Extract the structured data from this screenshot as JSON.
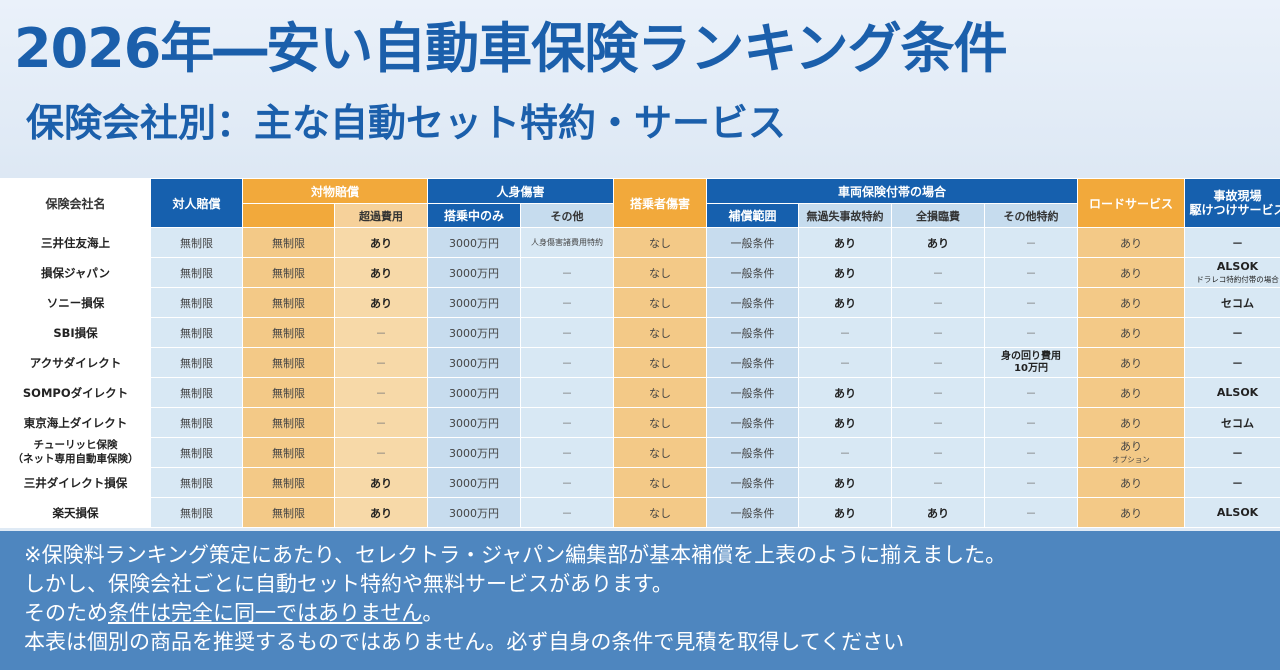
{
  "title": "2026年―安い自動車保険ランキング条件",
  "subtitle": "保険会社別：主な自動セット特約・サービス",
  "table": {
    "col_company": "保険会社名",
    "col_taijin": "対人賠償",
    "col_taibutsu": "対物賠償",
    "col_taibutsu_sub": "超過費用",
    "col_jinshin": "人身傷害",
    "col_jinshin_sub1": "搭乗中のみ",
    "col_jinshin_sub2": "その他",
    "col_tojosha": "搭乗者傷害",
    "col_sharyo": "車両保険付帯の場合",
    "col_sharyo_sub1": "補償範囲",
    "col_sharyo_sub2": "無過失事故特約",
    "col_sharyo_sub3": "全損臨費",
    "col_sharyo_sub4": "その他特約",
    "col_road": "ロードサービス",
    "col_jiko_line1": "事故現場",
    "col_jiko_line2": "駆けつけサービス",
    "rows": [
      {
        "name": "三井住友海上",
        "taijin": "無制限",
        "taibutsu": "無制限",
        "chouka": "あり",
        "tojochu": "3000万円",
        "sonota": "人身傷害諸費用特約",
        "tojosha": "なし",
        "hani": "一般条件",
        "mukashitsu": "あり",
        "zenson": "あり",
        "tokuyaku": "－",
        "road": "あり",
        "jiko": "－"
      },
      {
        "name": "損保ジャパン",
        "taijin": "無制限",
        "taibutsu": "無制限",
        "chouka": "あり",
        "tojochu": "3000万円",
        "sonota": "－",
        "tojosha": "なし",
        "hani": "一般条件",
        "mukashitsu": "あり",
        "zenson": "－",
        "tokuyaku": "－",
        "road": "あり",
        "jiko": "ALSOK",
        "jiko_sub": "ドラレコ特約付帯の場合"
      },
      {
        "name": "ソニー損保",
        "taijin": "無制限",
        "taibutsu": "無制限",
        "chouka": "あり",
        "tojochu": "3000万円",
        "sonota": "－",
        "tojosha": "なし",
        "hani": "一般条件",
        "mukashitsu": "あり",
        "zenson": "－",
        "tokuyaku": "－",
        "road": "あり",
        "jiko": "セコム"
      },
      {
        "name": "SBI損保",
        "taijin": "無制限",
        "taibutsu": "無制限",
        "chouka": "－",
        "tojochu": "3000万円",
        "sonota": "－",
        "tojosha": "なし",
        "hani": "一般条件",
        "mukashitsu": "－",
        "zenson": "－",
        "tokuyaku": "－",
        "road": "あり",
        "jiko": "－"
      },
      {
        "name": "アクサダイレクト",
        "taijin": "無制限",
        "taibutsu": "無制限",
        "chouka": "－",
        "tojochu": "3000万円",
        "sonota": "－",
        "tojosha": "なし",
        "hani": "一般条件",
        "mukashitsu": "－",
        "zenson": "－",
        "tokuyaku": "身の回り費用",
        "tokuyaku_sub": "10万円",
        "road": "あり",
        "jiko": "－"
      },
      {
        "name": "SOMPOダイレクト",
        "taijin": "無制限",
        "taibutsu": "無制限",
        "chouka": "－",
        "tojochu": "3000万円",
        "sonota": "－",
        "tojosha": "なし",
        "hani": "一般条件",
        "mukashitsu": "あり",
        "zenson": "－",
        "tokuyaku": "－",
        "road": "あり",
        "jiko": "ALSOK"
      },
      {
        "name": "東京海上ダイレクト",
        "taijin": "無制限",
        "taibutsu": "無制限",
        "chouka": "－",
        "tojochu": "3000万円",
        "sonota": "－",
        "tojosha": "なし",
        "hani": "一般条件",
        "mukashitsu": "あり",
        "zenson": "－",
        "tokuyaku": "－",
        "road": "あり",
        "jiko": "セコム"
      },
      {
        "name": "チューリッヒ保険",
        "name2": "（ネット専用自動車保険）",
        "taijin": "無制限",
        "taibutsu": "無制限",
        "chouka": "－",
        "tojochu": "3000万円",
        "sonota": "－",
        "tojosha": "なし",
        "hani": "一般条件",
        "mukashitsu": "－",
        "zenson": "－",
        "tokuyaku": "－",
        "road": "あり",
        "road_sub": "オプション",
        "jiko": "－"
      },
      {
        "name": "三井ダイレクト損保",
        "taijin": "無制限",
        "taibutsu": "無制限",
        "chouka": "あり",
        "tojochu": "3000万円",
        "sonota": "－",
        "tojosha": "なし",
        "hani": "一般条件",
        "mukashitsu": "あり",
        "zenson": "－",
        "tokuyaku": "－",
        "road": "あり",
        "jiko": "－"
      },
      {
        "name": "楽天損保",
        "taijin": "無制限",
        "taibutsu": "無制限",
        "chouka": "あり",
        "tojochu": "3000万円",
        "sonota": "－",
        "tojosha": "なし",
        "hani": "一般条件",
        "mukashitsu": "あり",
        "zenson": "あり",
        "tokuyaku": "－",
        "road": "あり",
        "jiko": "ALSOK"
      }
    ]
  },
  "notes": {
    "line1": "※保険料ランキング策定にあたり、セレクトラ・ジャパン編集部が基本補償を上表のように揃えました。",
    "line2": "しかし、保険会社ごとに自動セット特約や無料サービスがあります。",
    "line3_pre": "そのため",
    "line3_u": "条件は完全に同一ではありません",
    "line3_post": "。",
    "line4": "本表は個別の商品を推奨するものではありません。必ず自身の条件で見積を取得してください"
  }
}
